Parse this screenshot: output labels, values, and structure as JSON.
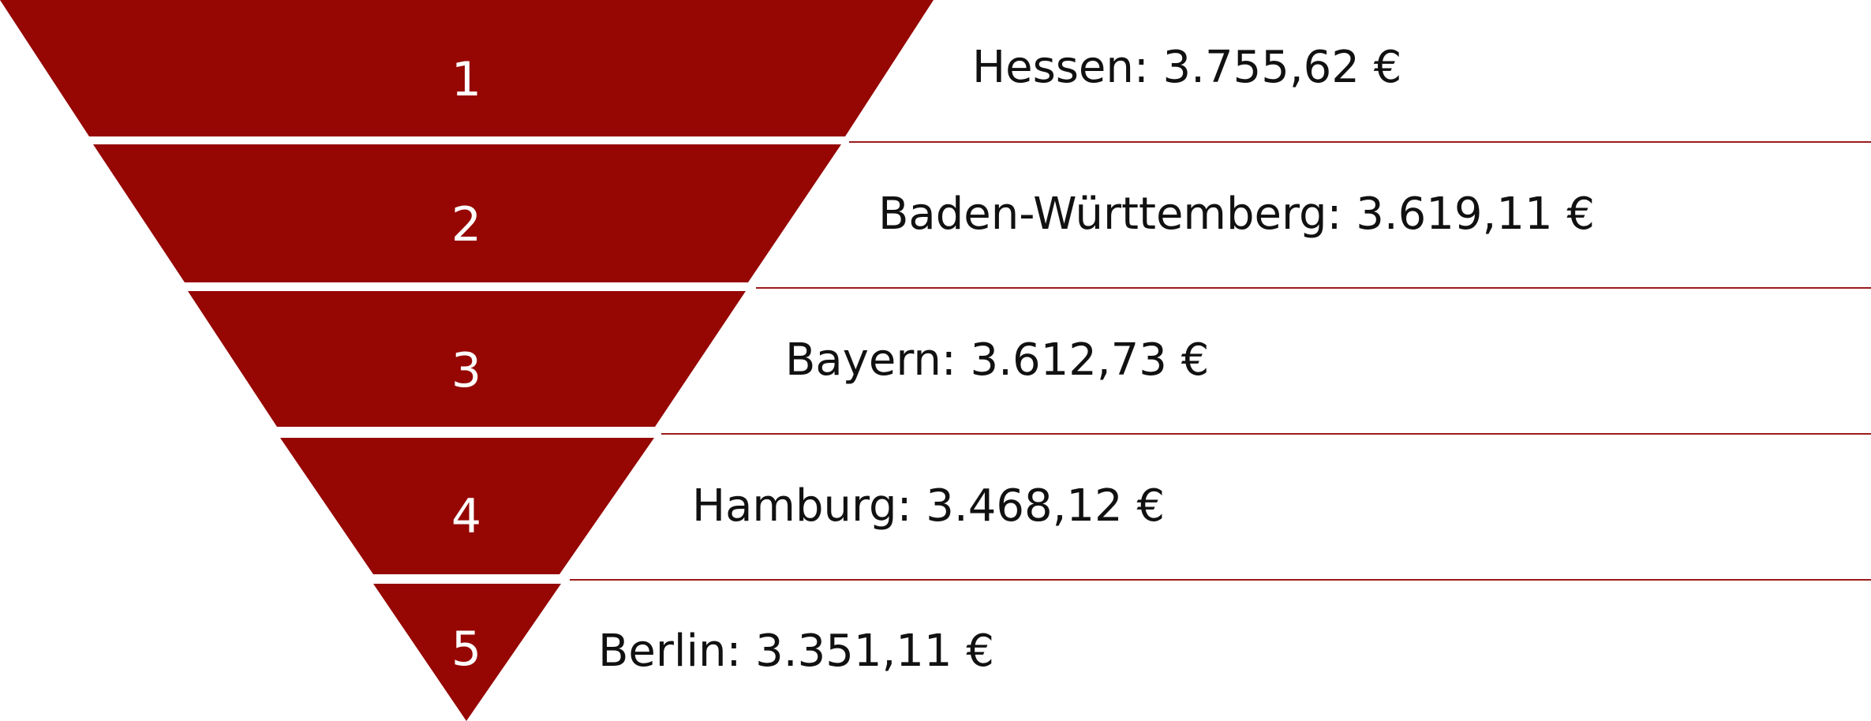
{
  "colors": {
    "funnel": "#960603",
    "divider": "#9b1b1b",
    "rank_text": "#ffffff",
    "entry_text": "#111111"
  },
  "ranking": [
    {
      "rank": "1",
      "region": "Hessen",
      "value": "3.755,62 €",
      "label": "Hessen: 3.755,62 €"
    },
    {
      "rank": "2",
      "region": "Baden-Württemberg",
      "value": "3.619,11 €",
      "label": "Baden-Württemberg: 3.619,11 €"
    },
    {
      "rank": "3",
      "region": "Bayern",
      "value": "3.612,73 €",
      "label": "Bayern: 3.612,73 €"
    },
    {
      "rank": "4",
      "region": "Hamburg",
      "value": "3.468,12 €",
      "label": "Hamburg: 3.468,12 €"
    },
    {
      "rank": "5",
      "region": "Berlin",
      "value": "3.351,11 €",
      "label": "Berlin: 3.351,11 €"
    }
  ]
}
